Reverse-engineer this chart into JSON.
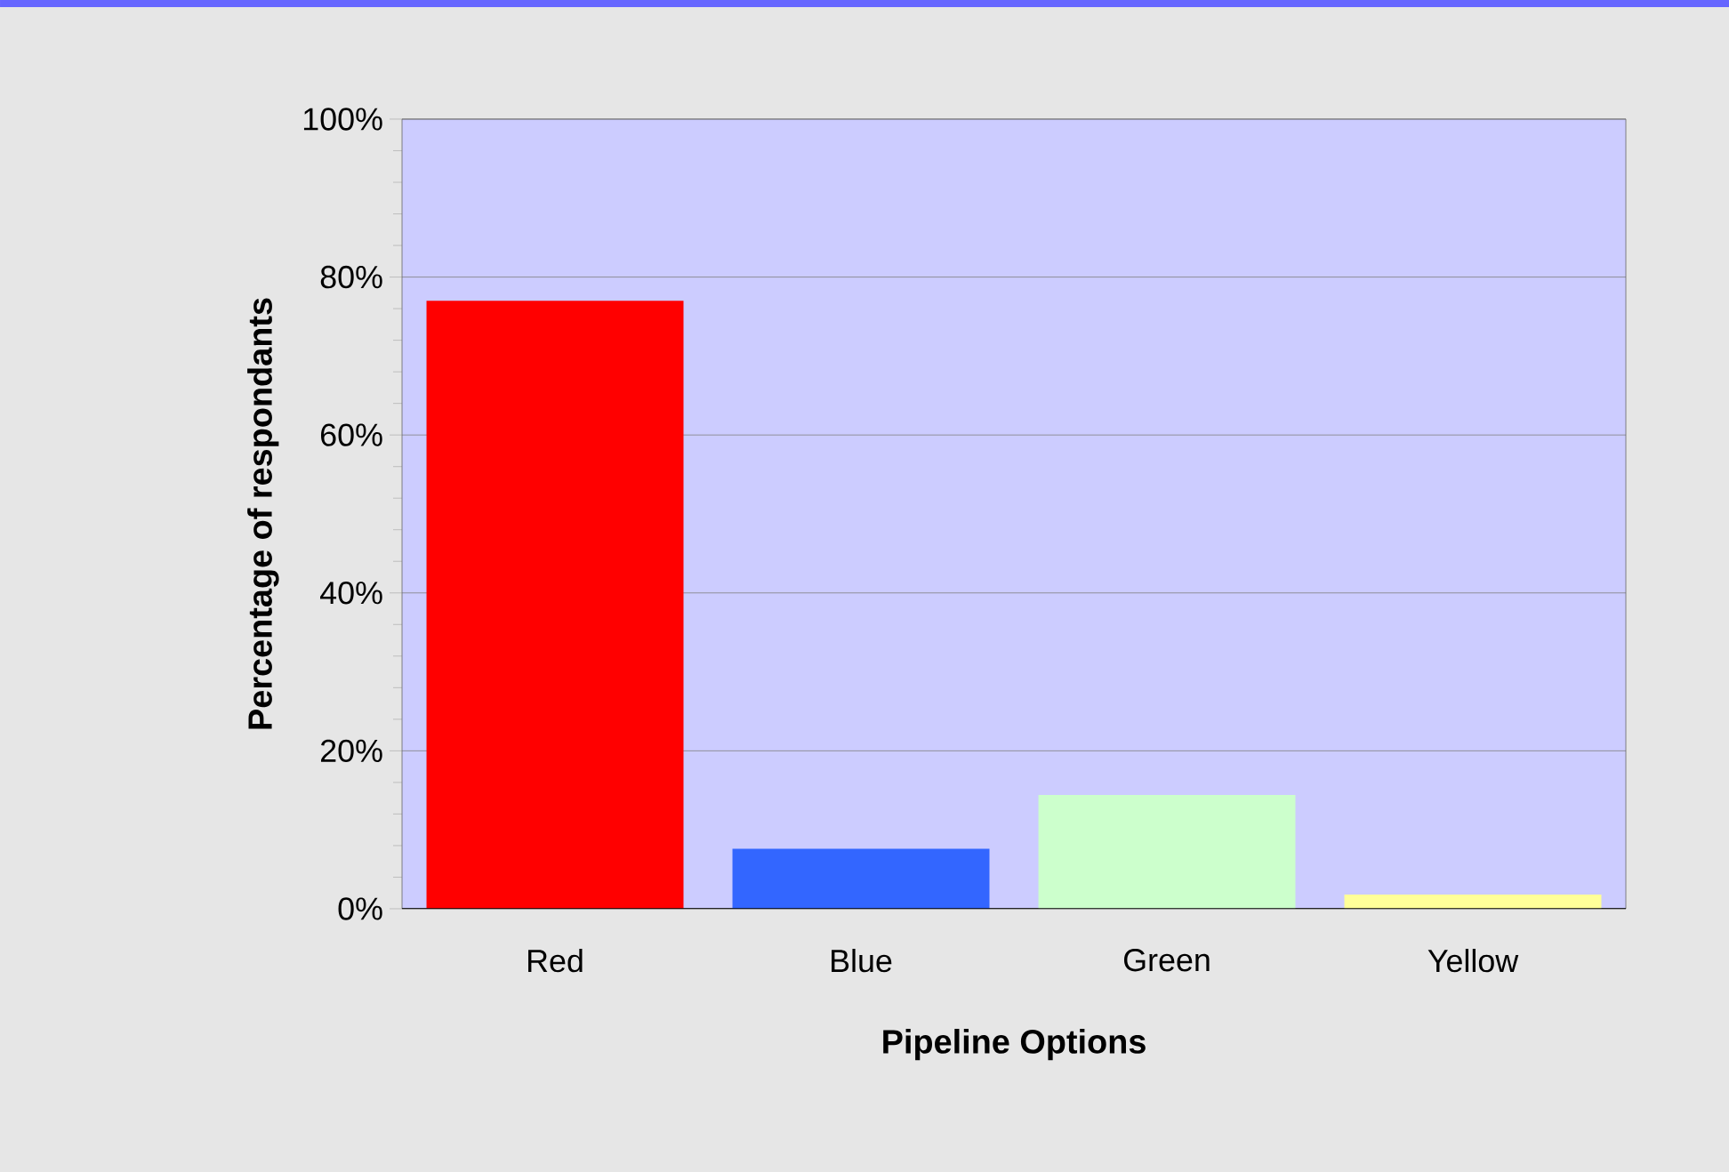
{
  "chart_data": {
    "type": "bar",
    "xlabel": "Pipeline Options",
    "ylabel": "Percentage of respondants",
    "categories": [
      "Red",
      "Blue",
      "Green",
      "Yellow"
    ],
    "values": [
      77,
      7.6,
      14.4,
      1.8
    ],
    "colors": [
      "#ff0000",
      "#3366ff",
      "#ccffcc",
      "#ffff99"
    ],
    "ylim": [
      0,
      100
    ],
    "yticks": [
      {
        "value": 0,
        "label": "0%"
      },
      {
        "value": 20,
        "label": "20%"
      },
      {
        "value": 40,
        "label": "40%"
      },
      {
        "value": 60,
        "label": "60%"
      },
      {
        "value": 80,
        "label": "80%"
      },
      {
        "value": 100,
        "label": "100%"
      }
    ],
    "grid": "y"
  }
}
